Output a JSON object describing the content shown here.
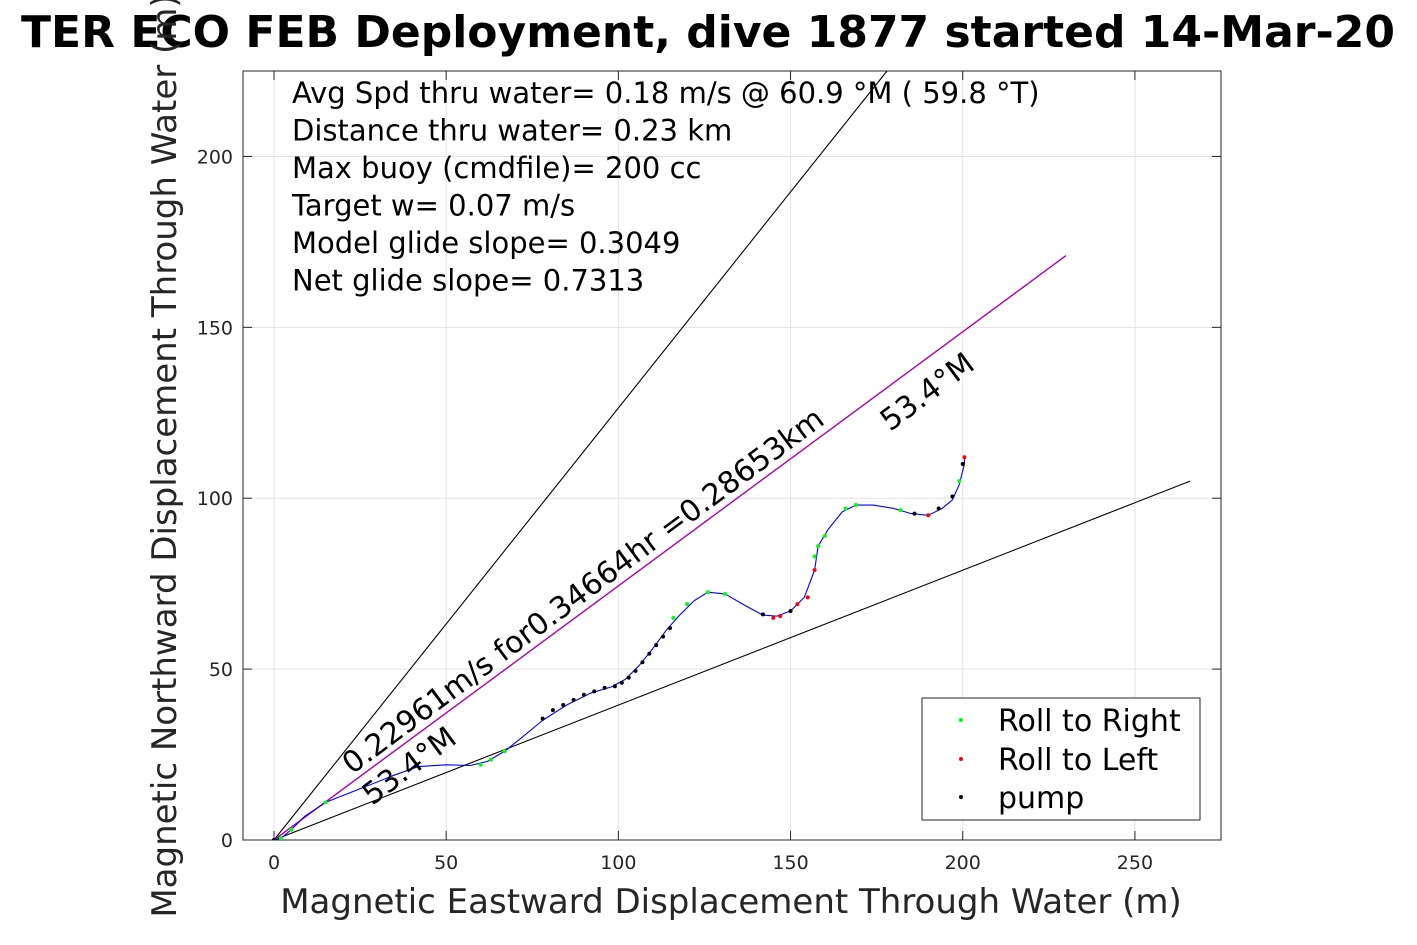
{
  "chart_data": {
    "type": "line",
    "title": "TER ECO FEB Deployment, dive 1877 started 14-Mar-20",
    "xlabel": "Magnetic Eastward Displacement Through Water (m)",
    "ylabel": "Magnetic Northward Displacement Through Water (m)",
    "xlim": [
      -9,
      275
    ],
    "ylim": [
      0,
      225
    ],
    "xticks": [
      "0",
      "50",
      "100",
      "150",
      "200",
      "250"
    ],
    "yticks": [
      "0",
      "50",
      "100",
      "150",
      "200"
    ],
    "grid": true,
    "legend_position": "bottom-right",
    "annotations": [
      "Avg Spd thru water=  0.18 m/s @  60.9 °M ( 59.8 °T)",
      "Distance thru water=  0.23 km",
      "Max buoy (cmdfile)= 200 cc",
      "Target w= 0.07 m/s",
      "Model glide slope= 0.3049",
      "Net glide slope= 0.7313"
    ],
    "line_label_speed": "0.22961m/s for0.34664hr =0.28653km",
    "heading_label_upper": "53.4°M",
    "heading_label_lower": "53.4°M",
    "reference_lines": [
      {
        "color": "#000000",
        "points": [
          [
            0,
            0
          ],
          [
            178,
            225
          ]
        ]
      },
      {
        "color": "#000000",
        "points": [
          [
            0,
            0
          ],
          [
            266,
            105
          ]
        ]
      },
      {
        "color": "#b000b0",
        "points": [
          [
            0,
            0
          ],
          [
            230,
            171
          ]
        ]
      }
    ],
    "track": {
      "color": "#0000ff",
      "points": [
        [
          0,
          0
        ],
        [
          2,
          0.5
        ],
        [
          5,
          3
        ],
        [
          9,
          7
        ],
        [
          15,
          11
        ],
        [
          25,
          15
        ],
        [
          35,
          19
        ],
        [
          42,
          21.5
        ],
        [
          50,
          22
        ],
        [
          57,
          21.8
        ],
        [
          62,
          23
        ],
        [
          67,
          26
        ],
        [
          72,
          30
        ],
        [
          78,
          35
        ],
        [
          85,
          39.5
        ],
        [
          92,
          43
        ],
        [
          98,
          44.8
        ],
        [
          102,
          47
        ],
        [
          106,
          51
        ],
        [
          110,
          56
        ],
        [
          114,
          61.5
        ],
        [
          118,
          66
        ],
        [
          122,
          70
        ],
        [
          126,
          72.5
        ],
        [
          131,
          72
        ],
        [
          137,
          68.5
        ],
        [
          142,
          65.8
        ],
        [
          146,
          65.5
        ],
        [
          150,
          67
        ],
        [
          154,
          71
        ],
        [
          157,
          79
        ],
        [
          158,
          86
        ],
        [
          161,
          91
        ],
        [
          165,
          96
        ],
        [
          169,
          98
        ],
        [
          174,
          98
        ],
        [
          180,
          97
        ],
        [
          185,
          95.5
        ],
        [
          190,
          95
        ],
        [
          194,
          97
        ],
        [
          197,
          99.5
        ],
        [
          199,
          104
        ],
        [
          200.5,
          110
        ],
        [
          200.5,
          112
        ]
      ]
    },
    "series": [
      {
        "name": "Roll to Right",
        "color": "#00ff00",
        "x": [
          2,
          5,
          15,
          60,
          63,
          67,
          116,
          120,
          126,
          131,
          157,
          158,
          160,
          166,
          169,
          182,
          199
        ],
        "y": [
          0.5,
          3,
          11,
          22,
          23.5,
          26,
          65,
          69,
          72.5,
          72,
          83,
          86,
          89,
          97,
          98,
          96.5,
          105
        ]
      },
      {
        "name": "Roll to Left",
        "color": "#ff0000",
        "x": [
          0,
          145,
          147,
          152,
          155,
          157,
          190,
          200.5
        ],
        "y": [
          0,
          65,
          65.5,
          69,
          71,
          79,
          95,
          112
        ]
      },
      {
        "name": "pump",
        "color": "#000000",
        "x": [
          0,
          78,
          81,
          84,
          87,
          90,
          93,
          96,
          99,
          101,
          103,
          105,
          107,
          109,
          111,
          113,
          115,
          142,
          150,
          186,
          193,
          197,
          200
        ],
        "y": [
          0,
          35.5,
          38,
          39.5,
          41,
          42.5,
          43.5,
          44.5,
          45,
          46,
          47.5,
          49.5,
          52,
          54.5,
          57,
          59.5,
          62,
          66,
          67,
          95.5,
          97,
          100.5,
          110
        ]
      }
    ]
  }
}
